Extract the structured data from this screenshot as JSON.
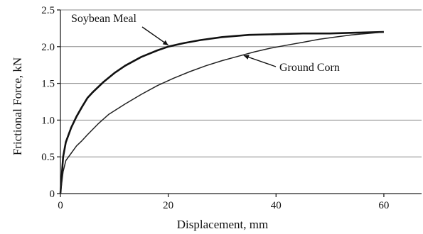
{
  "chart_data": {
    "type": "line",
    "title": "",
    "xlabel": "Displacement, mm",
    "ylabel": "Frictional Force, kN",
    "xlim": [
      0,
      67
    ],
    "ylim": [
      0,
      2.5
    ],
    "x_ticks": [
      0,
      20,
      40,
      60
    ],
    "x_tick_labels": [
      "0",
      "20",
      "40",
      "60"
    ],
    "y_ticks": [
      0,
      0.5,
      1.0,
      1.5,
      2.0,
      2.5
    ],
    "y_tick_labels": [
      "0",
      "0.5",
      "1.0",
      "1.5",
      "2.0",
      "2.5"
    ],
    "grid": "horizontal",
    "legend": "none (series labelled by annotations)",
    "series": [
      {
        "name": "Soybean Meal",
        "color": "#111111",
        "x": [
          0,
          0.5,
          1,
          2,
          3,
          4,
          5,
          6,
          8,
          10,
          12,
          15,
          18,
          20,
          23,
          26,
          30,
          35,
          40,
          45,
          50,
          55,
          60
        ],
        "y": [
          0,
          0.5,
          0.7,
          0.9,
          1.05,
          1.18,
          1.3,
          1.38,
          1.52,
          1.64,
          1.74,
          1.86,
          1.95,
          2.0,
          2.05,
          2.09,
          2.13,
          2.16,
          2.17,
          2.18,
          2.18,
          2.19,
          2.2
        ]
      },
      {
        "name": "Ground Corn",
        "color": "#222222",
        "x": [
          0,
          0.5,
          1,
          2,
          3,
          4,
          5,
          7,
          9,
          12,
          15,
          18,
          21,
          24,
          27,
          30,
          33,
          36,
          39,
          42,
          45,
          48,
          51,
          54,
          57,
          60
        ],
        "y": [
          0,
          0.3,
          0.45,
          0.55,
          0.65,
          0.72,
          0.8,
          0.95,
          1.08,
          1.22,
          1.35,
          1.47,
          1.57,
          1.66,
          1.74,
          1.81,
          1.87,
          1.93,
          1.98,
          2.02,
          2.06,
          2.1,
          2.13,
          2.16,
          2.18,
          2.2
        ]
      }
    ],
    "annotations": [
      {
        "text": "Soybean Meal",
        "points_to": {
          "x": 20,
          "y": 2.02
        }
      },
      {
        "text": "Ground Corn",
        "points_to": {
          "x": 34,
          "y": 1.88
        }
      }
    ]
  }
}
